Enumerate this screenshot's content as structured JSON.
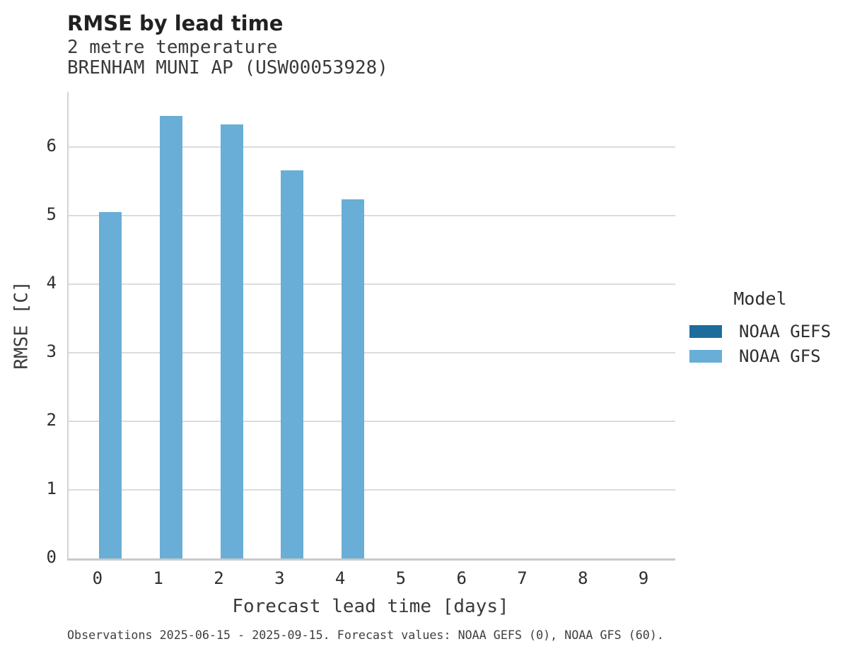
{
  "chart_data": {
    "type": "bar",
    "title": "RMSE by lead time",
    "subtitle_lines": [
      "2 metre temperature",
      "BRENHAM MUNI AP (USW00053928)"
    ],
    "xlabel": "Forecast lead time [days]",
    "ylabel": "RMSE [C]",
    "categories": [
      "0",
      "1",
      "2",
      "3",
      "4",
      "5",
      "6",
      "7",
      "8",
      "9"
    ],
    "series": [
      {
        "name": "NOAA GEFS",
        "color": "#1c6d9c",
        "values": [
          0,
          0,
          0,
          0,
          0,
          0,
          0,
          0,
          0,
          0
        ]
      },
      {
        "name": "NOAA GFS",
        "color": "#69aed6",
        "values": [
          5.05,
          6.45,
          6.33,
          5.66,
          5.23,
          0,
          0,
          0,
          0,
          0
        ]
      }
    ],
    "ylim": [
      0,
      6.8
    ],
    "yticks": [
      "0",
      "1",
      "2",
      "3",
      "4",
      "5",
      "6"
    ],
    "grid": "horizontal",
    "legend": {
      "title": "Model",
      "position": "right",
      "entries": [
        "NOAA GEFS",
        "NOAA GFS"
      ]
    },
    "caption": "Observations 2025-06-15 - 2025-09-15. Forecast values: NOAA GEFS (0), NOAA GFS (60)."
  },
  "colors": {
    "noaa_gefs": "#1c6d9c",
    "noaa_gfs": "#69aed6",
    "gridline": "#dcdcdc",
    "axis_line": "#c9c9c9",
    "title_text": "#212121",
    "body_text": "#3a3a3a"
  }
}
